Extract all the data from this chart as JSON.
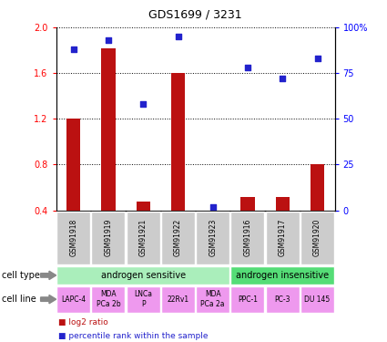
{
  "title": "GDS1699 / 3231",
  "samples": [
    "GSM91918",
    "GSM91919",
    "GSM91921",
    "GSM91922",
    "GSM91923",
    "GSM91916",
    "GSM91917",
    "GSM91920"
  ],
  "log2_ratio": [
    1.2,
    1.82,
    0.48,
    1.6,
    0.4,
    0.52,
    0.52,
    0.8
  ],
  "percentile_rank": [
    88,
    93,
    58,
    95,
    2,
    78,
    72,
    83
  ],
  "ylim_left": [
    0.4,
    2.0
  ],
  "ylim_right": [
    0,
    100
  ],
  "yticks_left": [
    0.4,
    0.8,
    1.2,
    1.6,
    2.0
  ],
  "yticks_right": [
    0,
    25,
    50,
    75,
    100
  ],
  "ytick_labels_right": [
    "0",
    "25",
    "50",
    "75",
    "100%"
  ],
  "bar_color": "#bb1111",
  "dot_color": "#2222cc",
  "cell_type_groups": [
    {
      "label": "androgen sensitive",
      "start": 0,
      "end": 4,
      "color": "#aaeebb"
    },
    {
      "label": "androgen insensitive",
      "start": 5,
      "end": 7,
      "color": "#55dd77"
    }
  ],
  "cell_lines": [
    "LAPC-4",
    "MDA\nPCa 2b",
    "LNCa\nP",
    "22Rv1",
    "MDA\nPCa 2a",
    "PPC-1",
    "PC-3",
    "DU 145"
  ],
  "cell_line_color": "#ee99ee",
  "sample_bg_color": "#cccccc",
  "legend_bar_label": "log2 ratio",
  "legend_dot_label": "percentile rank within the sample",
  "cell_type_label": "cell type",
  "cell_line_label": "cell line"
}
